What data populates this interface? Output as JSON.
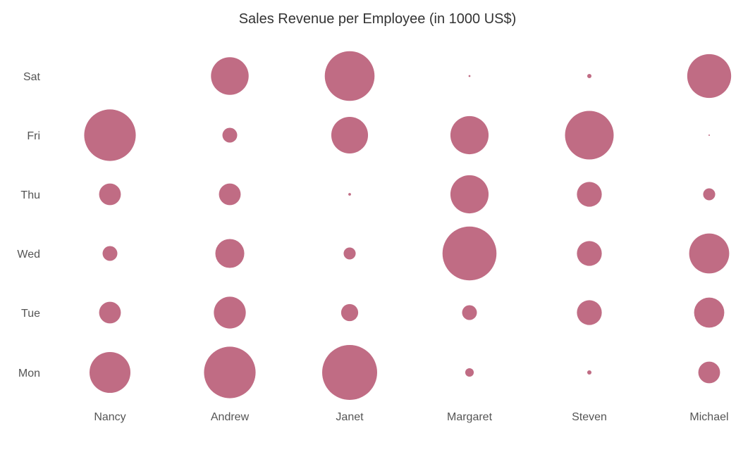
{
  "chart_data": {
    "type": "scatter",
    "subtype": "bubble",
    "title": "Sales Revenue per Employee (in 1000 US$)",
    "xlabel": "",
    "ylabel": "",
    "x_categories": [
      "Nancy",
      "Andrew",
      "Janet",
      "Margaret",
      "Steven",
      "Michael"
    ],
    "y_categories": [
      "Mon",
      "Tue",
      "Wed",
      "Thu",
      "Fri",
      "Sat"
    ],
    "bubble_color": "#c06c84",
    "grid": false,
    "legend": "none",
    "points": [
      {
        "x": "Nancy",
        "y": "Mon",
        "value": 46
      },
      {
        "x": "Nancy",
        "y": "Tue",
        "value": 13
      },
      {
        "x": "Nancy",
        "y": "Wed",
        "value": 6
      },
      {
        "x": "Nancy",
        "y": "Thu",
        "value": 13
      },
      {
        "x": "Nancy",
        "y": "Fri",
        "value": 73
      },
      {
        "x": "Nancy",
        "y": "Sat",
        "value": 0
      },
      {
        "x": "Andrew",
        "y": "Mon",
        "value": 73
      },
      {
        "x": "Andrew",
        "y": "Tue",
        "value": 28
      },
      {
        "x": "Andrew",
        "y": "Wed",
        "value": 23
      },
      {
        "x": "Andrew",
        "y": "Thu",
        "value": 13
      },
      {
        "x": "Andrew",
        "y": "Fri",
        "value": 6
      },
      {
        "x": "Andrew",
        "y": "Sat",
        "value": 39
      },
      {
        "x": "Janet",
        "y": "Mon",
        "value": 83
      },
      {
        "x": "Janet",
        "y": "Tue",
        "value": 8
      },
      {
        "x": "Janet",
        "y": "Wed",
        "value": 4
      },
      {
        "x": "Janet",
        "y": "Thu",
        "value": 0.2
      },
      {
        "x": "Janet",
        "y": "Fri",
        "value": 37
      },
      {
        "x": "Janet",
        "y": "Sat",
        "value": 68
      },
      {
        "x": "Margaret",
        "y": "Mon",
        "value": 2
      },
      {
        "x": "Margaret",
        "y": "Tue",
        "value": 6
      },
      {
        "x": "Margaret",
        "y": "Wed",
        "value": 80
      },
      {
        "x": "Margaret",
        "y": "Thu",
        "value": 40
      },
      {
        "x": "Margaret",
        "y": "Fri",
        "value": 40
      },
      {
        "x": "Margaret",
        "y": "Sat",
        "value": 0.1
      },
      {
        "x": "Steven",
        "y": "Mon",
        "value": 0.5
      },
      {
        "x": "Steven",
        "y": "Tue",
        "value": 17
      },
      {
        "x": "Steven",
        "y": "Wed",
        "value": 17
      },
      {
        "x": "Steven",
        "y": "Thu",
        "value": 17
      },
      {
        "x": "Steven",
        "y": "Fri",
        "value": 65
      },
      {
        "x": "Steven",
        "y": "Sat",
        "value": 0.5
      },
      {
        "x": "Michael",
        "y": "Mon",
        "value": 13
      },
      {
        "x": "Michael",
        "y": "Tue",
        "value": 25
      },
      {
        "x": "Michael",
        "y": "Wed",
        "value": 44
      },
      {
        "x": "Michael",
        "y": "Thu",
        "value": 4
      },
      {
        "x": "Michael",
        "y": "Fri",
        "value": 0.05
      },
      {
        "x": "Michael",
        "y": "Sat",
        "value": 53
      }
    ]
  }
}
